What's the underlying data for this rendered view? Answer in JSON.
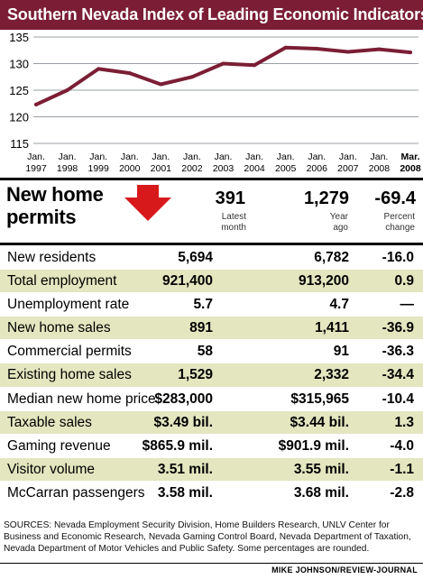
{
  "title": "Southern Nevada Index of Leading Economic Indicators",
  "chart_data": {
    "type": "line",
    "title": "Southern Nevada Index of Leading Economic Indicators",
    "categories": [
      "Jan. 1997",
      "Jan. 1998",
      "Jan. 1999",
      "Jan. 2000",
      "Jan. 2001",
      "Jan. 2002",
      "Jan. 2003",
      "Jan. 2004",
      "Jan. 2005",
      "Jan. 2006",
      "Jan. 2007",
      "Jan. 2008",
      "Mar. 2008"
    ],
    "tick_labels": [
      {
        "top": "Jan.",
        "bottom": "1997"
      },
      {
        "top": "Jan.",
        "bottom": "1998"
      },
      {
        "top": "Jan.",
        "bottom": "1999"
      },
      {
        "top": "Jan.",
        "bottom": "2000"
      },
      {
        "top": "Jan.",
        "bottom": "2001"
      },
      {
        "top": "Jan.",
        "bottom": "2002"
      },
      {
        "top": "Jan.",
        "bottom": "2003"
      },
      {
        "top": "Jan.",
        "bottom": "2004"
      },
      {
        "top": "Jan.",
        "bottom": "2005"
      },
      {
        "top": "Jan.",
        "bottom": "2006"
      },
      {
        "top": "Jan.",
        "bottom": "2007"
      },
      {
        "top": "Jan.",
        "bottom": "2008"
      },
      {
        "top": "Mar.",
        "bottom": "2008"
      }
    ],
    "values": [
      122.3,
      125.0,
      129.0,
      128.2,
      126.1,
      127.5,
      130.0,
      129.7,
      133.0,
      132.8,
      132.2,
      132.7,
      132.1
    ],
    "yticks": [
      115,
      120,
      125,
      130,
      135
    ],
    "ylim": [
      115,
      135
    ],
    "grid": true,
    "line_color": "#7b1e35",
    "grid_color": "#9aa0a6",
    "xlabel": "",
    "ylabel": ""
  },
  "permits": {
    "label": "New home permits",
    "latest": "391",
    "year_ago": "1,279",
    "pct": "-69.4",
    "latest_label_1": "Latest",
    "latest_label_2": "month",
    "ago_label_1": "Year",
    "ago_label_2": "ago",
    "pct_label_1": "Percent",
    "pct_label_2": "change",
    "arrow_color": "#d7191c",
    "arrow_icon": "down-arrow-icon"
  },
  "rows": [
    {
      "label": "New residents",
      "latest": "5,694",
      "year_ago": "6,782",
      "pct": "-16.0"
    },
    {
      "label": "Total employment",
      "latest": "921,400",
      "year_ago": "913,200",
      "pct": "0.9"
    },
    {
      "label": "Unemployment rate",
      "latest": "5.7",
      "year_ago": "4.7",
      "pct": "—"
    },
    {
      "label": "New home sales",
      "latest": "891",
      "year_ago": "1,411",
      "pct": "-36.9"
    },
    {
      "label": "Commercial permits",
      "latest": "58",
      "year_ago": "91",
      "pct": "-36.3"
    },
    {
      "label": "Existing home sales",
      "latest": "1,529",
      "year_ago": "2,332",
      "pct": "-34.4"
    },
    {
      "label": "Median new home price",
      "latest": "$283,000",
      "year_ago": "$315,965",
      "pct": "-10.4"
    },
    {
      "label": "Taxable sales",
      "latest": "$3.49 bil.",
      "year_ago": "$3.44 bil.",
      "pct": "1.3"
    },
    {
      "label": "Gaming revenue",
      "latest": "$865.9 mil.",
      "year_ago": "$901.9 mil.",
      "pct": "-4.0"
    },
    {
      "label": "Visitor volume",
      "latest": "3.51 mil.",
      "year_ago": "3.55 mil.",
      "pct": "-1.1"
    },
    {
      "label": "McCarran passengers",
      "latest": "3.58 mil.",
      "year_ago": "3.68 mil.",
      "pct": "-2.8"
    }
  ],
  "sources": "SOURCES: Nevada Employment Security Division, Home Builders Research, UNLV Center for Business and Economic Research, Nevada Gaming Control Board, Nevada Department of Taxation, Nevada Department of Motor Vehicles and Public Safety. Some percentages are rounded.",
  "credit": "MIKE JOHNSON/REVIEW-JOURNAL",
  "colors": {
    "title_bg": "#7b1e35",
    "row_shade": "#e3e6bf"
  }
}
